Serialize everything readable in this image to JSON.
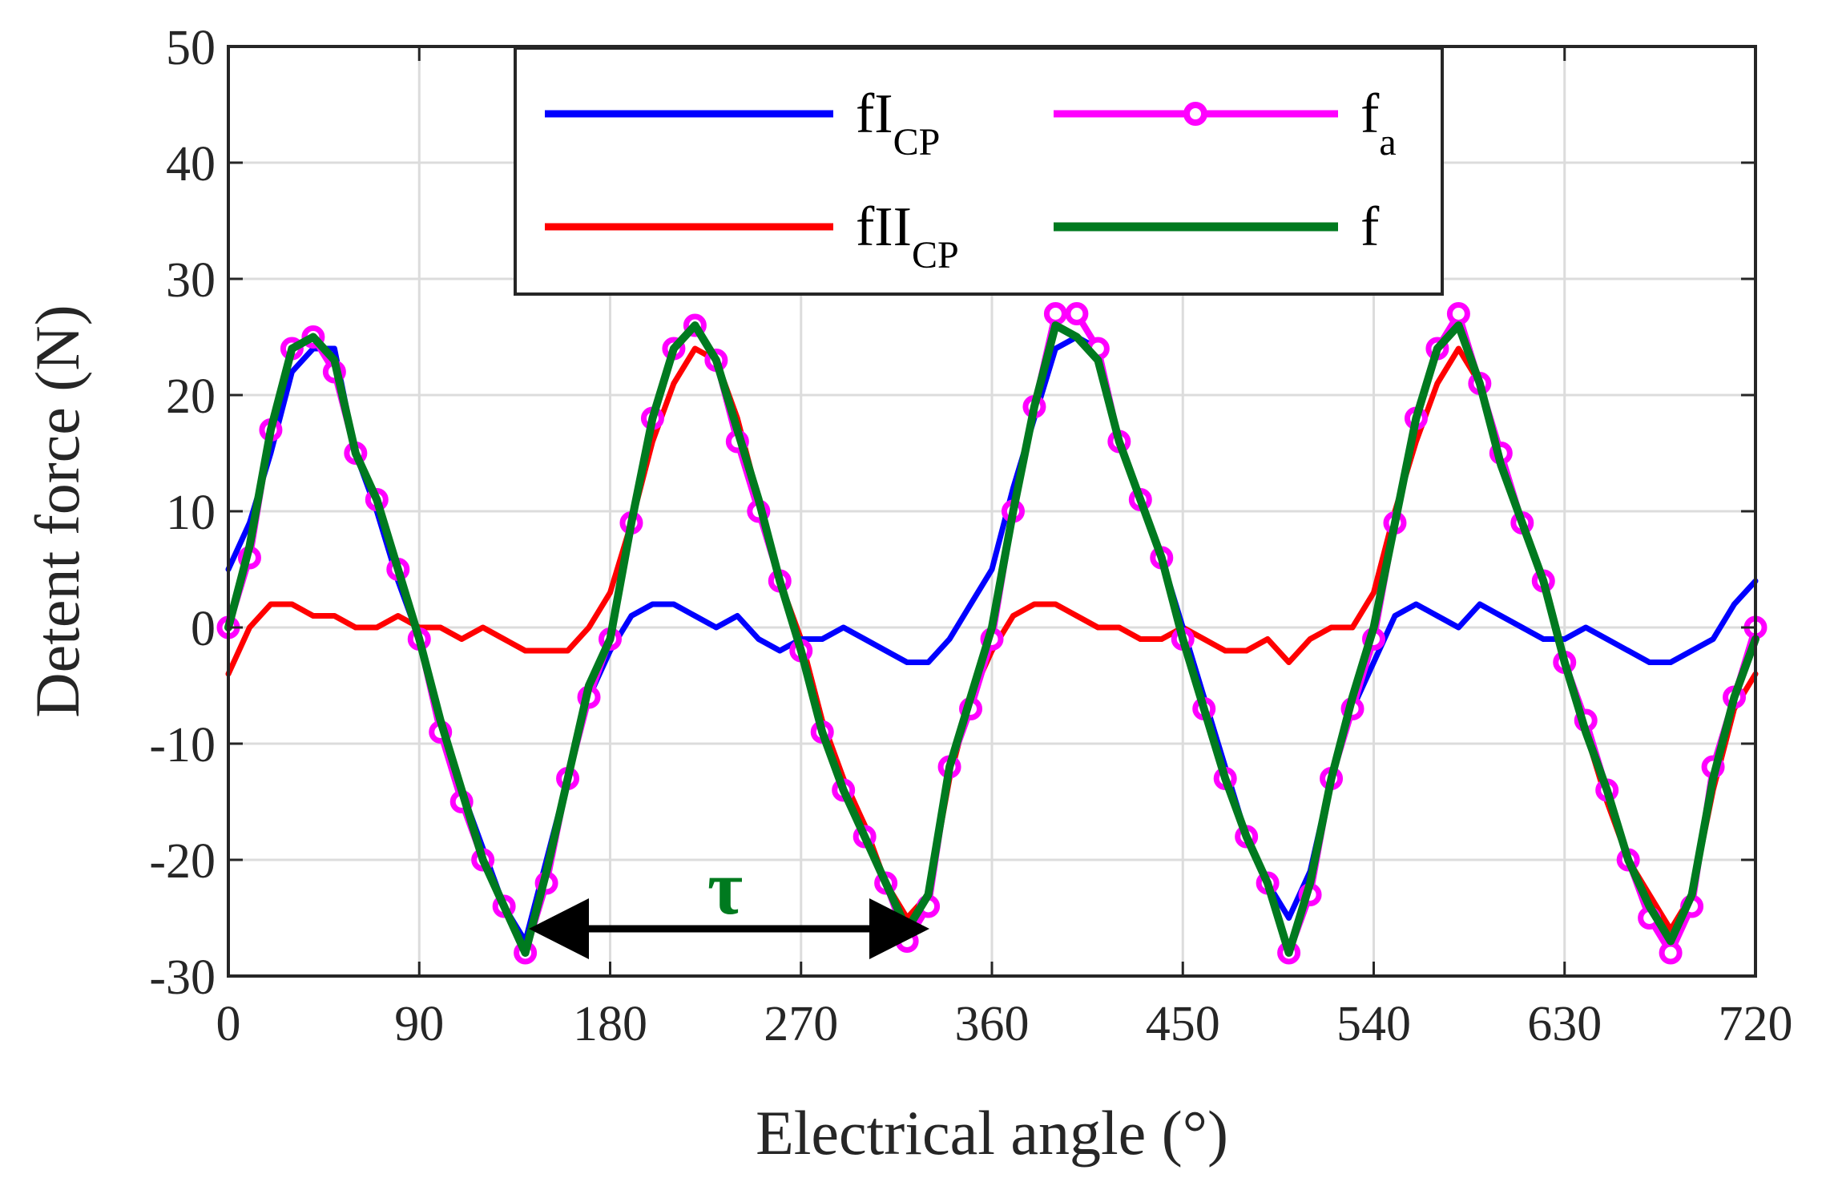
{
  "chart_data": {
    "type": "line",
    "xlabel": "Electrical angle (°)",
    "ylabel": "Detent force (N)",
    "xlim": [
      0,
      720
    ],
    "ylim": [
      -30,
      50
    ],
    "x_ticks": [
      0,
      90,
      180,
      270,
      360,
      450,
      540,
      630,
      720
    ],
    "y_ticks": [
      50,
      40,
      30,
      20,
      10,
      0,
      -10,
      -20,
      -30
    ],
    "grid": true,
    "legend_position": "top-center",
    "annotation": {
      "text": "τ",
      "x_start": 143,
      "x_end": 330,
      "y": -26,
      "color": "#007a1f"
    },
    "series": [
      {
        "name": "fI",
        "subscript": "CP",
        "color": "#0000ff",
        "marker": "none",
        "x": [
          0,
          10,
          20,
          30,
          40,
          50,
          60,
          70,
          80,
          90,
          100,
          110,
          120,
          130,
          140,
          150,
          160,
          170,
          180,
          190,
          200,
          210,
          220,
          230,
          240,
          250,
          260,
          270,
          280,
          290,
          300,
          310,
          320,
          330,
          340,
          350,
          360,
          370,
          380,
          390,
          400,
          410,
          420,
          430,
          440,
          450,
          460,
          470,
          480,
          490,
          500,
          510,
          520,
          530,
          540,
          550,
          560,
          570,
          580,
          590,
          600,
          610,
          620,
          630,
          640,
          650,
          660,
          670,
          680,
          690,
          700,
          710,
          720
        ],
        "y": [
          5,
          9,
          15,
          22,
          24,
          24,
          15,
          10,
          4,
          -1,
          -8,
          -14,
          -19,
          -24,
          -27,
          -20,
          -13,
          -6,
          -2,
          1,
          2,
          2,
          1,
          0,
          1,
          -1,
          -2,
          -1,
          -1,
          0,
          -1,
          -2,
          -3,
          -3,
          -1,
          2,
          5,
          12,
          18,
          24,
          25,
          24,
          16,
          11,
          6,
          0,
          -6,
          -12,
          -18,
          -22,
          -25,
          -21,
          -13,
          -7,
          -3,
          1,
          2,
          1,
          0,
          2,
          1,
          0,
          -1,
          -1,
          0,
          -1,
          -2,
          -3,
          -3,
          -2,
          -1,
          2,
          4
        ]
      },
      {
        "name": "fII",
        "subscript": "CP",
        "color": "#ff0000",
        "marker": "none",
        "x": [
          0,
          10,
          20,
          30,
          40,
          50,
          60,
          70,
          80,
          90,
          100,
          110,
          120,
          130,
          140,
          150,
          160,
          170,
          180,
          190,
          200,
          210,
          220,
          230,
          240,
          250,
          260,
          270,
          280,
          290,
          300,
          310,
          320,
          330,
          340,
          350,
          360,
          370,
          380,
          390,
          400,
          410,
          420,
          430,
          440,
          450,
          460,
          470,
          480,
          490,
          500,
          510,
          520,
          530,
          540,
          550,
          560,
          570,
          580,
          590,
          600,
          610,
          620,
          630,
          640,
          650,
          660,
          670,
          680,
          690,
          700,
          710,
          720
        ],
        "y": [
          -4,
          0,
          2,
          2,
          1,
          1,
          0,
          0,
          1,
          0,
          0,
          -1,
          0,
          -1,
          -2,
          -2,
          -2,
          0,
          3,
          9,
          16,
          21,
          24,
          23,
          18,
          11,
          4,
          -1,
          -8,
          -13,
          -17,
          -22,
          -25,
          -23,
          -13,
          -6,
          -2,
          1,
          2,
          2,
          1,
          0,
          0,
          -1,
          -1,
          0,
          -1,
          -2,
          -2,
          -1,
          -3,
          -1,
          0,
          0,
          3,
          10,
          16,
          21,
          24,
          21,
          14,
          9,
          4,
          -3,
          -9,
          -15,
          -20,
          -23,
          -26,
          -23,
          -14,
          -7,
          -4
        ]
      },
      {
        "name": "f",
        "subscript": "a",
        "color": "#ff00ff",
        "marker": "circle",
        "x": [
          0,
          10,
          20,
          30,
          40,
          50,
          60,
          70,
          80,
          90,
          100,
          110,
          120,
          130,
          140,
          150,
          160,
          170,
          180,
          190,
          200,
          210,
          220,
          230,
          240,
          250,
          260,
          270,
          280,
          290,
          300,
          310,
          320,
          330,
          340,
          350,
          360,
          370,
          380,
          390,
          400,
          410,
          420,
          430,
          440,
          450,
          460,
          470,
          480,
          490,
          500,
          510,
          520,
          530,
          540,
          550,
          560,
          570,
          580,
          590,
          600,
          610,
          620,
          630,
          640,
          650,
          660,
          670,
          680,
          690,
          700,
          710,
          720
        ],
        "y": [
          0,
          6,
          17,
          24,
          25,
          22,
          15,
          11,
          5,
          -1,
          -9,
          -15,
          -20,
          -24,
          -28,
          -22,
          -13,
          -6,
          -1,
          9,
          18,
          24,
          26,
          23,
          16,
          10,
          4,
          -2,
          -9,
          -14,
          -18,
          -22,
          -27,
          -24,
          -12,
          -7,
          -1,
          10,
          19,
          27,
          27,
          24,
          16,
          11,
          6,
          -1,
          -7,
          -13,
          -18,
          -22,
          -28,
          -23,
          -13,
          -7,
          -1,
          9,
          18,
          24,
          27,
          21,
          15,
          9,
          4,
          -3,
          -8,
          -14,
          -20,
          -25,
          -28,
          -24,
          -12,
          -6,
          0
        ]
      },
      {
        "name": "f",
        "subscript": "",
        "color": "#007a1f",
        "marker": "none",
        "x": [
          0,
          10,
          20,
          30,
          40,
          50,
          60,
          70,
          80,
          90,
          100,
          110,
          120,
          130,
          140,
          150,
          160,
          170,
          180,
          190,
          200,
          210,
          220,
          230,
          240,
          250,
          260,
          270,
          280,
          290,
          300,
          310,
          320,
          330,
          340,
          350,
          360,
          370,
          380,
          390,
          400,
          410,
          420,
          430,
          440,
          450,
          460,
          470,
          480,
          490,
          500,
          510,
          520,
          530,
          540,
          550,
          560,
          570,
          580,
          590,
          600,
          610,
          620,
          630,
          640,
          650,
          660,
          670,
          680,
          690,
          700,
          710,
          720
        ],
        "y": [
          0,
          7,
          17,
          24,
          25,
          23,
          15,
          11,
          5,
          -1,
          -8,
          -14,
          -20,
          -24,
          -28,
          -21,
          -13,
          -5,
          -1,
          9,
          18,
          24,
          26,
          23,
          17,
          11,
          4,
          -2,
          -9,
          -14,
          -18,
          -22,
          -26,
          -23,
          -12,
          -6,
          0,
          10,
          19,
          26,
          25,
          23,
          16,
          11,
          6,
          -1,
          -7,
          -13,
          -18,
          -22,
          -28,
          -22,
          -13,
          -6,
          0,
          9,
          18,
          24,
          26,
          21,
          14,
          9,
          4,
          -3,
          -9,
          -14,
          -20,
          -24,
          -27,
          -23,
          -13,
          -6,
          -1
        ]
      }
    ]
  }
}
